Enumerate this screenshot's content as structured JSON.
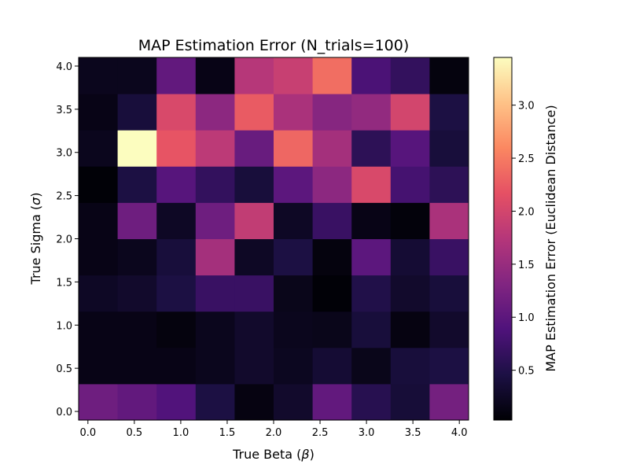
{
  "chart_data": {
    "type": "heatmap",
    "title": "MAP Estimation Error (N_trials=100)",
    "xlabel": "True Beta (",
    "xlabel_symbol": "β",
    "xlabel_suffix": ")",
    "ylabel": "True Sigma (",
    "ylabel_symbol": "σ",
    "ylabel_suffix": ")",
    "x": [
      0.0,
      0.5,
      1.0,
      1.5,
      2.0,
      2.5,
      3.0,
      3.5,
      4.0
    ],
    "y": [
      0.0,
      0.5,
      1.0,
      1.5,
      2.0,
      2.5,
      3.0,
      3.5,
      4.0
    ],
    "xtick_labels": [
      "0.0",
      "0.5",
      "1.0",
      "1.5",
      "2.0",
      "2.5",
      "3.0",
      "3.5",
      "4.0"
    ],
    "ytick_labels": [
      "0.0",
      "0.5",
      "1.0",
      "1.5",
      "2.0",
      "2.5",
      "3.0",
      "3.5",
      "4.0"
    ],
    "colormap": "magma",
    "vmin": 0.03,
    "vmax": 3.45,
    "colorbar_label": "MAP Estimation Error (Euclidean Distance)",
    "colorbar_ticks": [
      0.5,
      1.0,
      1.5,
      2.0,
      2.5,
      3.0
    ],
    "colorbar_tick_labels": [
      "0.5",
      "1.0",
      "1.5",
      "2.0",
      "2.5",
      "3.0"
    ],
    "z": [
      [
        1.15,
        1.05,
        0.9,
        0.45,
        0.12,
        0.3,
        1.05,
        0.55,
        0.38,
        1.2
      ],
      [
        0.15,
        0.15,
        0.15,
        0.2,
        0.3,
        0.22,
        0.35,
        0.18,
        0.4,
        0.45
      ],
      [
        0.15,
        0.15,
        0.1,
        0.2,
        0.3,
        0.2,
        0.18,
        0.4,
        0.12,
        0.3
      ],
      [
        0.25,
        0.3,
        0.45,
        0.7,
        0.7,
        0.18,
        0.05,
        0.5,
        0.3,
        0.4
      ],
      [
        0.15,
        0.2,
        0.4,
        1.6,
        0.25,
        0.45,
        0.1,
        1.0,
        0.35,
        0.7
      ],
      [
        0.15,
        1.15,
        0.25,
        1.15,
        1.85,
        0.25,
        0.7,
        0.15,
        0.08,
        1.65
      ],
      [
        0.05,
        0.45,
        0.95,
        0.65,
        0.4,
        1.0,
        1.4,
        2.05,
        0.8,
        0.6
      ],
      [
        0.2,
        3.45,
        2.2,
        1.8,
        1.1,
        2.35,
        1.6,
        0.6,
        0.95,
        0.4
      ],
      [
        0.15,
        0.4,
        2.05,
        1.4,
        2.25,
        1.65,
        1.35,
        1.45,
        2.0,
        0.45
      ],
      [
        0.2,
        0.2,
        1.05,
        0.15,
        1.75,
        1.9,
        2.4,
        0.85,
        0.65,
        0.1
      ]
    ]
  }
}
